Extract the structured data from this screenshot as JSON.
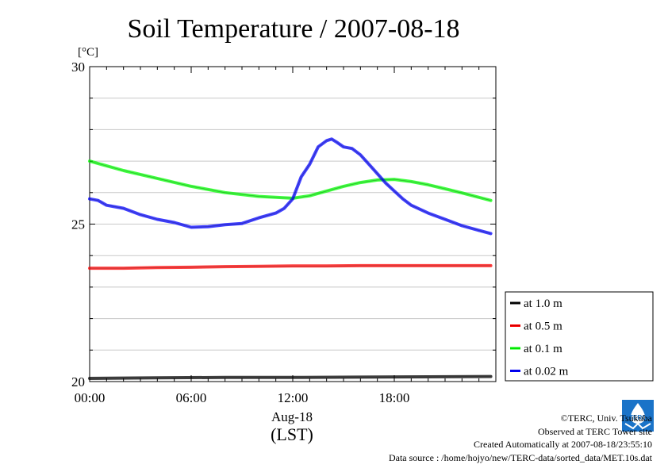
{
  "chart_data": {
    "type": "line",
    "title": "Soil Temperature / 2007-08-18",
    "ylabel": "[°C]",
    "xlabel": "Aug-18",
    "xlabel2": "(LST)",
    "xlim": [
      0,
      24
    ],
    "ylim": [
      20,
      30
    ],
    "yticks": [
      20,
      25,
      30
    ],
    "ytick_labels": [
      "20",
      "25",
      "30"
    ],
    "xticks": [
      0,
      6,
      12,
      18
    ],
    "xtick_labels": [
      "00:00",
      "06:00",
      "12:00",
      "18:00"
    ],
    "grid": true,
    "legend_position": "right",
    "series": [
      {
        "name": "at 1.0 m",
        "color": "#000000",
        "x": [
          0,
          4,
          8,
          12,
          16,
          20,
          23.7
        ],
        "y": [
          20.1,
          20.12,
          20.13,
          20.13,
          20.14,
          20.15,
          20.16
        ]
      },
      {
        "name": "at 0.5 m",
        "color": "#ff0000",
        "x": [
          0,
          2,
          4,
          6,
          8,
          10,
          12,
          14,
          16,
          18,
          20,
          22,
          23.7
        ],
        "y": [
          23.6,
          23.6,
          23.62,
          23.63,
          23.65,
          23.66,
          23.67,
          23.67,
          23.68,
          23.68,
          23.68,
          23.68,
          23.68
        ]
      },
      {
        "name": "at 0.1 m",
        "color": "#00ff00",
        "x": [
          0,
          2,
          4,
          6,
          8,
          10,
          11,
          12,
          13,
          14,
          15,
          16,
          17,
          18,
          19,
          20,
          21,
          22,
          23.7
        ],
        "y": [
          27.0,
          26.7,
          26.45,
          26.2,
          26.0,
          25.88,
          25.85,
          25.82,
          25.9,
          26.05,
          26.2,
          26.32,
          26.4,
          26.42,
          26.35,
          26.25,
          26.12,
          25.99,
          25.75
        ]
      },
      {
        "name": "at 0.02 m",
        "color": "#0000ff",
        "x": [
          0,
          0.5,
          1,
          2,
          3,
          4,
          5,
          6,
          7,
          8,
          9,
          10,
          11,
          11.5,
          12,
          12.5,
          13,
          13.5,
          14,
          14.3,
          14.6,
          15,
          15.5,
          16,
          16.5,
          17,
          17.5,
          18,
          18.5,
          19,
          20,
          21,
          22,
          23,
          23.7
        ],
        "y": [
          25.8,
          25.75,
          25.6,
          25.5,
          25.3,
          25.15,
          25.05,
          24.9,
          24.92,
          24.98,
          25.02,
          25.2,
          25.35,
          25.5,
          25.8,
          26.5,
          26.9,
          27.45,
          27.65,
          27.7,
          27.6,
          27.45,
          27.4,
          27.2,
          26.9,
          26.6,
          26.3,
          26.05,
          25.8,
          25.6,
          25.35,
          25.15,
          24.95,
          24.8,
          24.7
        ]
      }
    ]
  },
  "credits": {
    "copyright": "©TERC, Univ. Tsukuba",
    "observed": "Observed at TERC Tower site",
    "created": "Created Automatically at 2007-08-18/23:55:10",
    "source": "Data source : /home/hojyo/new/TERC-data/sorted_data/MET.10s.dat"
  },
  "logo": {
    "text": "TERC",
    "color": "#1a73c8"
  }
}
